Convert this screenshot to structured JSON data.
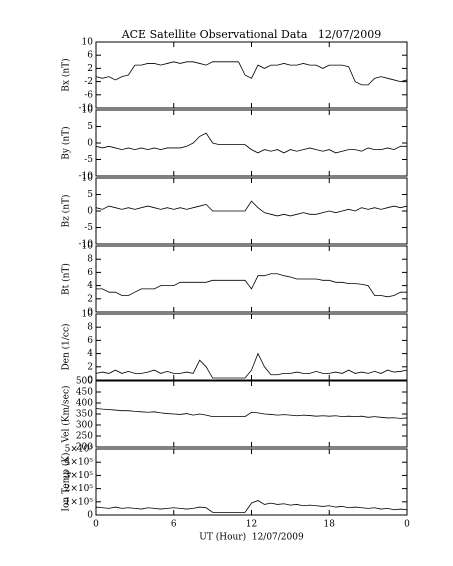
{
  "chart_data": [
    {
      "type": "line",
      "title": "ACE Satellite Observational Data   12/07/2009",
      "ylabel": "Bx (nT)",
      "color": "#000000",
      "x": [
        0,
        0.5,
        1,
        1.5,
        2,
        2.5,
        3,
        3.5,
        4,
        4.5,
        5,
        5.5,
        6,
        6.5,
        7,
        7.5,
        8,
        8.5,
        9,
        9.5,
        10,
        10.5,
        11,
        11.5,
        12,
        12.5,
        13,
        13.5,
        14,
        14.5,
        15,
        15.5,
        16,
        16.5,
        17,
        17.5,
        18,
        18.5,
        19,
        19.5,
        20,
        20.5,
        21,
        21.5,
        22,
        22.5,
        23,
        23.5,
        24
      ],
      "values": [
        -0.5,
        -1,
        -0.5,
        -1.5,
        -0.5,
        0,
        3,
        3,
        3.5,
        3.5,
        3,
        3.5,
        4,
        3.5,
        4,
        4,
        3.5,
        3,
        4,
        4,
        4,
        4,
        4,
        0,
        -1,
        3,
        2,
        3,
        3,
        3.5,
        3,
        3,
        3.5,
        3,
        3,
        2,
        3,
        3,
        3,
        2.5,
        -2,
        -3,
        -3,
        -1,
        -0.5,
        -1,
        -1.5,
        -2,
        -1.5
      ],
      "xlim": [
        0,
        24
      ],
      "xticks": [
        0,
        6,
        12,
        18,
        {
          "value": 24,
          "label": "0"
        }
      ],
      "ylim": [
        -10,
        10
      ],
      "yticks": [
        -10,
        -6,
        -2,
        2,
        6,
        10
      ]
    },
    {
      "type": "line",
      "ylabel": "By (nT)",
      "color": "#000000",
      "x": [
        0,
        0.5,
        1,
        1.5,
        2,
        2.5,
        3,
        3.5,
        4,
        4.5,
        5,
        5.5,
        6,
        6.5,
        7,
        7.5,
        8,
        8.5,
        9,
        9.5,
        10,
        10.5,
        11,
        11.5,
        12,
        12.5,
        13,
        13.5,
        14,
        14.5,
        15,
        15.5,
        16,
        16.5,
        17,
        17.5,
        18,
        18.5,
        19,
        19.5,
        20,
        20.5,
        21,
        21.5,
        22,
        22.5,
        23,
        23.5,
        24
      ],
      "values": [
        -1,
        -1.5,
        -1,
        -1.5,
        -2,
        -1.5,
        -2,
        -1.5,
        -2,
        -1.5,
        -2,
        -1.5,
        -1.5,
        -1.5,
        -1,
        0,
        2,
        3,
        0,
        -0.5,
        -0.5,
        -0.5,
        -0.5,
        -0.5,
        -2,
        -3,
        -2,
        -2.5,
        -2,
        -3,
        -2,
        -2.5,
        -2,
        -1.5,
        -2,
        -2.5,
        -2,
        -3,
        -2.5,
        -2,
        -2,
        -2.5,
        -1.5,
        -2,
        -2,
        -1.5,
        -2,
        -1,
        -1
      ],
      "xlim": [
        0,
        24
      ],
      "xticks": [
        0,
        6,
        12,
        18,
        {
          "value": 24,
          "label": "0"
        }
      ],
      "ylim": [
        -10,
        10
      ],
      "yticks": [
        -10,
        -5,
        0,
        5,
        10
      ]
    },
    {
      "type": "line",
      "ylabel": "Bz (nT)",
      "color": "#000000",
      "x": [
        0,
        0.5,
        1,
        1.5,
        2,
        2.5,
        3,
        3.5,
        4,
        4.5,
        5,
        5.5,
        6,
        6.5,
        7,
        7.5,
        8,
        8.5,
        9,
        9.5,
        10,
        10.5,
        11,
        11.5,
        12,
        12.5,
        13,
        13.5,
        14,
        14.5,
        15,
        15.5,
        16,
        16.5,
        17,
        17.5,
        18,
        18.5,
        19,
        19.5,
        20,
        20.5,
        21,
        21.5,
        22,
        22.5,
        23,
        23.5,
        24
      ],
      "values": [
        1,
        0.5,
        1.5,
        1,
        0.5,
        1,
        0.5,
        1,
        1.5,
        1,
        0.5,
        1,
        0.5,
        1,
        0.5,
        1,
        1.5,
        2,
        0,
        0,
        0,
        0,
        0,
        0,
        3,
        1,
        -0.5,
        -1,
        -1.5,
        -1,
        -1.5,
        -1,
        -0.5,
        -1,
        -1,
        -0.5,
        0,
        -0.5,
        0,
        0.5,
        0,
        1,
        0.5,
        1,
        0.5,
        1,
        1.5,
        1,
        1.5
      ],
      "xlim": [
        0,
        24
      ],
      "xticks": [
        0,
        6,
        12,
        18,
        {
          "value": 24,
          "label": "0"
        }
      ],
      "ylim": [
        -10,
        10
      ],
      "yticks": [
        -10,
        -5,
        0,
        5,
        10
      ]
    },
    {
      "type": "line",
      "ylabel": "Bt (nT)",
      "color": "#000000",
      "x": [
        0,
        0.5,
        1,
        1.5,
        2,
        2.5,
        3,
        3.5,
        4,
        4.5,
        5,
        5.5,
        6,
        6.5,
        7,
        7.5,
        8,
        8.5,
        9,
        9.5,
        10,
        10.5,
        11,
        11.5,
        12,
        12.5,
        13,
        13.5,
        14,
        14.5,
        15,
        15.5,
        16,
        16.5,
        17,
        17.5,
        18,
        18.5,
        19,
        19.5,
        20,
        20.5,
        21,
        21.5,
        22,
        22.5,
        23,
        23.5,
        24
      ],
      "values": [
        3.5,
        3.5,
        3,
        3,
        2.5,
        2.5,
        3,
        3.5,
        3.5,
        3.5,
        4,
        4,
        4,
        4.5,
        4.5,
        4.5,
        4.5,
        4.5,
        4.8,
        4.8,
        4.8,
        4.8,
        4.8,
        4.8,
        3.5,
        5.5,
        5.5,
        5.8,
        5.8,
        5.5,
        5.3,
        5,
        5,
        5,
        5,
        4.8,
        4.8,
        4.5,
        4.5,
        4.3,
        4.3,
        4.2,
        4,
        2.5,
        2.5,
        2.3,
        2.5,
        3,
        3
      ],
      "xlim": [
        0,
        24
      ],
      "xticks": [
        0,
        6,
        12,
        18,
        {
          "value": 24,
          "label": "0"
        }
      ],
      "ylim": [
        0,
        10
      ],
      "yticks": [
        0,
        2,
        4,
        6,
        8,
        10
      ]
    },
    {
      "type": "line",
      "ylabel": "Den (1/cc)",
      "color": "#000000",
      "x": [
        0,
        0.5,
        1,
        1.5,
        2,
        2.5,
        3,
        3.5,
        4,
        4.5,
        5,
        5.5,
        6,
        6.5,
        7,
        7.5,
        8,
        8.5,
        9,
        9.5,
        10,
        10.5,
        11,
        11.5,
        12,
        12.5,
        13,
        13.5,
        14,
        14.5,
        15,
        15.5,
        16,
        16.5,
        17,
        17.5,
        18,
        18.5,
        19,
        19.5,
        20,
        20.5,
        21,
        21.5,
        22,
        22.5,
        23,
        23.5,
        24
      ],
      "values": [
        1,
        1.2,
        1,
        1.5,
        1,
        1.3,
        1,
        1,
        1.2,
        1.5,
        1,
        1.3,
        1,
        1,
        1.2,
        1,
        3,
        2,
        0.3,
        0.3,
        0.3,
        0.3,
        0.3,
        0.3,
        1.5,
        4,
        2,
        0.8,
        0.8,
        1,
        1,
        1.2,
        1,
        1,
        1.3,
        1,
        1,
        1.2,
        1,
        1.5,
        1,
        1.2,
        1,
        1.3,
        1,
        1.5,
        1.2,
        1.3,
        1.5
      ],
      "xlim": [
        0,
        24
      ],
      "xticks": [
        0,
        6,
        12,
        18,
        {
          "value": 24,
          "label": "0"
        }
      ],
      "ylim": [
        0,
        10
      ],
      "yticks": [
        0,
        2,
        4,
        6,
        8,
        10
      ]
    },
    {
      "type": "line",
      "ylabel": "Vel (Km/sec)",
      "color": "#000000",
      "x": [
        0,
        0.5,
        1,
        1.5,
        2,
        2.5,
        3,
        3.5,
        4,
        4.5,
        5,
        5.5,
        6,
        6.5,
        7,
        7.5,
        8,
        8.5,
        9,
        9.5,
        10,
        10.5,
        11,
        11.5,
        12,
        12.5,
        13,
        13.5,
        14,
        14.5,
        15,
        15.5,
        16,
        16.5,
        17,
        17.5,
        18,
        18.5,
        19,
        19.5,
        20,
        20.5,
        21,
        21.5,
        22,
        22.5,
        23,
        23.5,
        24
      ],
      "values": [
        375,
        372,
        370,
        368,
        365,
        365,
        362,
        360,
        358,
        360,
        355,
        352,
        350,
        348,
        352,
        345,
        350,
        345,
        338,
        338,
        338,
        338,
        338,
        338,
        358,
        355,
        350,
        348,
        345,
        347,
        345,
        342,
        345,
        343,
        340,
        342,
        340,
        342,
        338,
        340,
        338,
        340,
        335,
        338,
        335,
        332,
        333,
        330,
        332
      ],
      "xlim": [
        0,
        24
      ],
      "xticks": [
        0,
        6,
        12,
        18,
        {
          "value": 24,
          "label": "0"
        }
      ],
      "ylim": [
        200,
        500
      ],
      "yticks": [
        200,
        250,
        300,
        350,
        400,
        450,
        500
      ]
    },
    {
      "type": "line",
      "ylabel": "Ion Temp (K)",
      "xlabel": "UT (Hour)  12/07/2009",
      "color": "#000000",
      "x": [
        0,
        0.5,
        1,
        1.5,
        2,
        2.5,
        3,
        3.5,
        4,
        4.5,
        5,
        5.5,
        6,
        6.5,
        7,
        7.5,
        8,
        8.5,
        9,
        9.5,
        10,
        10.5,
        11,
        11.5,
        12,
        12.5,
        13,
        13.5,
        14,
        14.5,
        15,
        15.5,
        16,
        16.5,
        17,
        17.5,
        18,
        18.5,
        19,
        19.5,
        20,
        20.5,
        21,
        21.5,
        22,
        22.5,
        23,
        23.5,
        24
      ],
      "values": [
        60000,
        55000,
        50000,
        60000,
        50000,
        55000,
        50000,
        45000,
        55000,
        50000,
        45000,
        50000,
        55000,
        50000,
        45000,
        50000,
        60000,
        55000,
        20000,
        20000,
        20000,
        20000,
        20000,
        20000,
        90000,
        110000,
        80000,
        90000,
        80000,
        85000,
        75000,
        80000,
        70000,
        75000,
        70000,
        65000,
        70000,
        60000,
        65000,
        55000,
        60000,
        55000,
        50000,
        55000,
        45000,
        50000,
        40000,
        45000,
        40000
      ],
      "xlim": [
        0,
        24
      ],
      "xticks": [
        0,
        6,
        12,
        18,
        {
          "value": 24,
          "label": "0"
        }
      ],
      "ylim": [
        0,
        500000
      ],
      "yticks": [
        0,
        {
          "value": 100000,
          "label": "1×10⁵"
        },
        {
          "value": 200000,
          "label": "2×10⁵"
        },
        {
          "value": 300000,
          "label": "3×10⁵"
        },
        {
          "value": 400000,
          "label": "4×10⁵"
        },
        {
          "value": 500000,
          "label": "5×10⁵"
        }
      ]
    }
  ]
}
